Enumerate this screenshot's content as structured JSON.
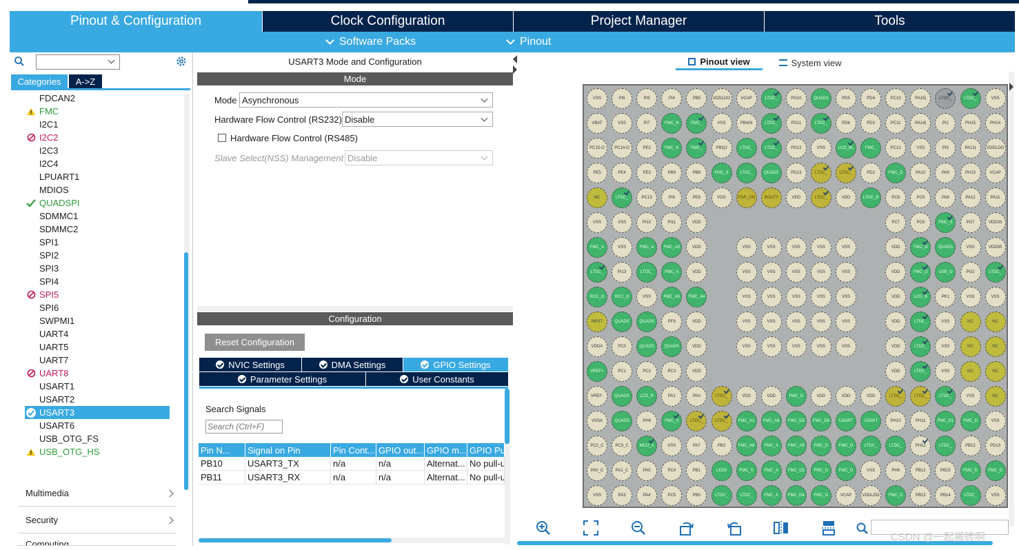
{
  "main_tabs": [
    "Pinout & Configuration",
    "Clock Configuration",
    "Project Manager",
    "Tools"
  ],
  "sub_nav": [
    "Software Packs",
    "Pinout"
  ],
  "left": {
    "search_value": "",
    "cat_tabs": [
      "Categories",
      "A->Z"
    ],
    "peripherals": [
      {
        "label": "FDCAN2",
        "state": "none"
      },
      {
        "label": "FMC",
        "state": "warn"
      },
      {
        "label": "I2C1",
        "state": "none"
      },
      {
        "label": "I2C2",
        "state": "blocked"
      },
      {
        "label": "I2C3",
        "state": "none"
      },
      {
        "label": "I2C4",
        "state": "none"
      },
      {
        "label": "LPUART1",
        "state": "none"
      },
      {
        "label": "MDIOS",
        "state": "none"
      },
      {
        "label": "QUADSPI",
        "state": "ok"
      },
      {
        "label": "SDMMC1",
        "state": "none"
      },
      {
        "label": "SDMMC2",
        "state": "none"
      },
      {
        "label": "SPI1",
        "state": "none"
      },
      {
        "label": "SPI2",
        "state": "none"
      },
      {
        "label": "SPI3",
        "state": "none"
      },
      {
        "label": "SPI4",
        "state": "none"
      },
      {
        "label": "SPI5",
        "state": "blocked"
      },
      {
        "label": "SPI6",
        "state": "none"
      },
      {
        "label": "SWPMI1",
        "state": "none"
      },
      {
        "label": "UART4",
        "state": "none"
      },
      {
        "label": "UART5",
        "state": "none"
      },
      {
        "label": "UART7",
        "state": "none"
      },
      {
        "label": "UART8",
        "state": "blocked"
      },
      {
        "label": "USART1",
        "state": "none"
      },
      {
        "label": "USART2",
        "state": "none"
      },
      {
        "label": "USART3",
        "state": "selected"
      },
      {
        "label": "USART6",
        "state": "none"
      },
      {
        "label": "USB_OTG_FS",
        "state": "none"
      },
      {
        "label": "USB_OTG_HS",
        "state": "warn"
      }
    ],
    "groups": [
      "Multimedia",
      "Security",
      "Computing"
    ]
  },
  "mid": {
    "title": "USART3 Mode and Configuration",
    "mode_header": "Mode",
    "mode_label": "Mode",
    "mode_value": "Asynchronous",
    "hfc_label": "Hardware Flow Control (RS232)",
    "hfc_value": "Disable",
    "rs485_label": "Hardware Flow Control (RS485)",
    "nss_label": "Slave Select(NSS) Management",
    "nss_value": "Disable",
    "config_header": "Configuration",
    "reset_button": "Reset Configuration",
    "settings_tabs": [
      "NVIC Settings",
      "DMA Settings",
      "GPIO Settings",
      "Parameter Settings",
      "User Constants"
    ],
    "search_label": "Search Signals",
    "search_placeholder": "Search (Ctrl+F)",
    "table": {
      "headers": [
        "Pin N...",
        "Signal on Pin",
        "Pin Cont...",
        "GPIO out...",
        "GPIO m...",
        "GPIO Pu"
      ],
      "rows": [
        [
          "PB10",
          "USART3_TX",
          "n/a",
          "n/a",
          "Alternat...",
          "No pull-u"
        ],
        [
          "PB11",
          "USART3_RX",
          "n/a",
          "n/a",
          "Alternat...",
          "No pull-u"
        ]
      ]
    }
  },
  "right": {
    "views": [
      "Pinout view",
      "System view"
    ],
    "pin_rows": [
      [
        [
          "VSS",
          "bg"
        ],
        [
          "PI6",
          "bg"
        ],
        [
          "PI5",
          "bg"
        ],
        [
          "PI4",
          "bg"
        ],
        [
          "PB5",
          "bg"
        ],
        [
          "VDDLDO",
          "bg"
        ],
        [
          "VCAP",
          "bg"
        ],
        [
          "LTDC_",
          "gr"
        ],
        [
          "PG10",
          "bg"
        ],
        [
          "QUADS",
          "gr"
        ],
        [
          "PD5",
          "bg"
        ],
        [
          "PD4",
          "bg"
        ],
        [
          "PC10",
          "bg"
        ],
        [
          "PA15(",
          "bg"
        ],
        [
          "LTDC_",
          "gy"
        ],
        [
          "LTDC_",
          "gr"
        ],
        [
          "VSS",
          "bg"
        ]
      ],
      [
        [
          "VBAT",
          "bg"
        ],
        [
          "VSS",
          "bg"
        ],
        [
          "PI7",
          "bg"
        ],
        [
          "FMC_N",
          "gr"
        ],
        [
          "FMC_",
          "gr"
        ],
        [
          "VSS",
          "bg"
        ],
        [
          "PB4(N",
          "bg"
        ],
        [
          "LTDC_",
          "gr"
        ],
        [
          "PG11",
          "bg"
        ],
        [
          "LTDC_",
          "gr"
        ],
        [
          "PD6",
          "bg"
        ],
        [
          "PD3",
          "bg"
        ],
        [
          "PC11",
          "bg"
        ],
        [
          "PA14(",
          "bg"
        ],
        [
          "PI2",
          "bg"
        ],
        [
          "PH15",
          "bg"
        ],
        [
          "PH14",
          "bg"
        ]
      ],
      [
        [
          "PC15-O",
          "bg"
        ],
        [
          "PC14-O",
          "bg"
        ],
        [
          "PE2",
          "bg"
        ],
        [
          "FMC_N",
          "gr"
        ],
        [
          "FMC_",
          "gr"
        ],
        [
          "PB3(J",
          "bg"
        ],
        [
          "LTDC_",
          "gr"
        ],
        [
          "LTDC_",
          "gr"
        ],
        [
          "PG12",
          "bg"
        ],
        [
          "VSS",
          "bg"
        ],
        [
          "LCD_BL",
          "gr"
        ],
        [
          "FMC_",
          "gr"
        ],
        [
          "PC12",
          "bg"
        ],
        [
          "VSS",
          "bg"
        ],
        [
          "PI3",
          "bg"
        ],
        [
          "PA13(",
          "bg"
        ],
        [
          "VDDLDO",
          "bg"
        ]
      ],
      [
        [
          "PE5",
          "bg"
        ],
        [
          "PE4",
          "bg"
        ],
        [
          "PE3",
          "bg"
        ],
        [
          "PB9",
          "bg"
        ],
        [
          "PB8",
          "bg"
        ],
        [
          "FMC_S",
          "gr"
        ],
        [
          "LTDC_",
          "gr"
        ],
        [
          "QUADS",
          "gr"
        ],
        [
          "PG13",
          "bg"
        ],
        [
          "LTDC_",
          "ye"
        ],
        [
          "LTDC_",
          "ye"
        ],
        [
          "PD2",
          "bg"
        ],
        [
          "FMC_D",
          "gr"
        ],
        [
          "PA10",
          "bg"
        ],
        [
          "PA9",
          "bg"
        ],
        [
          "PH13",
          "bg"
        ],
        [
          "VCAP",
          "bg"
        ]
      ],
      [
        [
          "NC",
          "nc"
        ],
        [
          "LTDC_",
          "gr"
        ],
        [
          "PC13",
          "bg"
        ],
        [
          "PI8",
          "bg"
        ],
        [
          "PE6",
          "bg"
        ],
        [
          "VDD",
          "bg"
        ],
        [
          "PDR_ON",
          "ye"
        ],
        [
          "BOOT0",
          "ye"
        ],
        [
          "VDD",
          "bg"
        ],
        [
          "LTDC_",
          "ye"
        ],
        [
          "VDD",
          "bg"
        ],
        [
          "LTDC_B",
          "gr"
        ],
        [
          "PC8",
          "bg"
        ],
        [
          "PC9",
          "bg"
        ],
        [
          "PA8",
          "bg"
        ],
        [
          "PA12",
          "bg"
        ],
        [
          "PA11",
          "bg"
        ]
      ],
      [
        [
          "VSS",
          "bg"
        ],
        [
          "VSS",
          "bg"
        ],
        [
          "PI10",
          "bg"
        ],
        [
          "PI11",
          "bg"
        ],
        [
          "VDD",
          "bg"
        ],
        [],
        [],
        [],
        [],
        [],
        [],
        [],
        [
          "PC7",
          "bg"
        ],
        [
          "PC6",
          "bg"
        ],
        [
          "FMC_S",
          "gr"
        ],
        [
          "PG7",
          "bg"
        ],
        [
          "VDD33",
          "bg"
        ]
      ],
      [
        [
          "FMC_A",
          "gr"
        ],
        [
          "VSS",
          "bg"
        ],
        [
          "FMC_A",
          "gr"
        ],
        [
          "FMC_A0",
          "gr"
        ],
        [
          "VDD",
          "bg"
        ],
        [],
        [
          "VSS",
          "bg"
        ],
        [
          "VSS",
          "bg"
        ],
        [
          "VSS",
          "bg"
        ],
        [
          "VSS",
          "bg"
        ],
        [
          "VSS",
          "bg"
        ],
        [],
        [
          "VDD",
          "bg"
        ],
        [
          "FMC_D",
          "gr"
        ],
        [
          "QUADS",
          "gr"
        ],
        [
          "VSS",
          "bg"
        ],
        [
          "VDD50",
          "bg"
        ]
      ],
      [
        [
          "LTDC_",
          "gr"
        ],
        [
          "PI13",
          "bg"
        ],
        [
          "LTDC_",
          "gr"
        ],
        [
          "FMC_A",
          "gr"
        ],
        [
          "VDD",
          "bg"
        ],
        [],
        [
          "VSS",
          "bg"
        ],
        [
          "VSS",
          "bg"
        ],
        [
          "VSS",
          "bg"
        ],
        [
          "VSS",
          "bg"
        ],
        [
          "VSS",
          "bg"
        ],
        [],
        [
          "VDD",
          "bg"
        ],
        [
          "FMC_D",
          "gr"
        ],
        [
          "USB_O",
          "gr"
        ],
        [
          "PG2",
          "bg"
        ],
        [
          "LTDC_",
          "gr"
        ]
      ],
      [
        [
          "RCC_O",
          "gr"
        ],
        [
          "RCC_O",
          "gr"
        ],
        [
          "VSS",
          "bg"
        ],
        [
          "FMC_A5",
          "gr"
        ],
        [
          "FMC_A4",
          "gr"
        ],
        [],
        [
          "VSS",
          "bg"
        ],
        [
          "VSS",
          "bg"
        ],
        [
          "VSS",
          "bg"
        ],
        [
          "VSS",
          "bg"
        ],
        [
          "VSS",
          "bg"
        ],
        [],
        [
          "VDD",
          "bg"
        ],
        [
          "LCD_B",
          "gr"
        ],
        [
          "PK1",
          "bg"
        ],
        [
          "VSS",
          "bg"
        ],
        [
          "VSS",
          "bg"
        ]
      ],
      [
        [
          "NRST",
          "nc"
        ],
        [
          "QUADS",
          "gr"
        ],
        [
          "QUADS",
          "gr"
        ],
        [
          "PF8",
          "bg"
        ],
        [
          "VDD",
          "bg"
        ],
        [],
        [
          "VSS",
          "bg"
        ],
        [
          "VSS",
          "bg"
        ],
        [
          "VSS",
          "bg"
        ],
        [
          "VSS",
          "bg"
        ],
        [
          "VSS",
          "bg"
        ],
        [],
        [
          "VDD",
          "bg"
        ],
        [
          "LTDC_",
          "gr"
        ],
        [
          "VSS",
          "bg"
        ],
        [
          "NC",
          "nc"
        ],
        [
          "NC",
          "nc"
        ]
      ],
      [
        [
          "VDDA",
          "bg"
        ],
        [
          "PC0",
          "bg"
        ],
        [
          "QUADS",
          "gr"
        ],
        [
          "QUADS",
          "gr"
        ],
        [
          "VDD",
          "bg"
        ],
        [],
        [
          "VSS",
          "bg"
        ],
        [
          "VSS",
          "bg"
        ],
        [
          "VSS",
          "bg"
        ],
        [
          "VSS",
          "bg"
        ],
        [
          "VSS",
          "bg"
        ],
        [],
        [
          "VDD",
          "bg"
        ],
        [
          "LTDC_",
          "gr"
        ],
        [
          "VSS",
          "bg"
        ],
        [
          "NC",
          "nc"
        ],
        [
          "NC",
          "nc"
        ]
      ],
      [
        [
          "VREF+",
          "gr"
        ],
        [
          "PC1",
          "bg"
        ],
        [
          "PC2",
          "bg"
        ],
        [
          "PC3",
          "bg"
        ],
        [
          "VDD",
          "bg"
        ],
        [],
        [],
        [],
        [],
        [],
        [],
        [],
        [
          "VDD",
          "bg"
        ],
        [
          "LTDC_",
          "gr"
        ],
        [
          "VSS",
          "bg"
        ],
        [
          "NC",
          "nc"
        ],
        [
          "NC",
          "nc"
        ]
      ],
      [
        [
          "VREF-",
          "bg"
        ],
        [
          "QUADS",
          "gr"
        ],
        [
          "LCD_R",
          "gr"
        ],
        [
          "PA1",
          "bg"
        ],
        [
          "PA0",
          "bg"
        ],
        [
          "LTDC_",
          "ye"
        ],
        [
          "VDD",
          "bg"
        ],
        [
          "VDD",
          "bg"
        ],
        [
          "FMC_D",
          "gr"
        ],
        [
          "VDD",
          "bg"
        ],
        [
          "VDD",
          "bg"
        ],
        [
          "VDD",
          "bg"
        ],
        [
          "LTDC_",
          "ye"
        ],
        [
          "LTDC_",
          "ye"
        ],
        [
          "LTDC_",
          "gr"
        ],
        [
          "VSS",
          "bg"
        ],
        [
          "NC",
          "nc"
        ]
      ],
      [
        [
          "VSSA",
          "bg"
        ],
        [
          "QUADS",
          "gr"
        ],
        [
          "PH4",
          "bg"
        ],
        [
          "FMC_S",
          "gr"
        ],
        [
          "LTDC_",
          "ye"
        ],
        [
          "LTDC_",
          "ye"
        ],
        [
          "FMC_A1",
          "gr"
        ],
        [
          "FMC_A6",
          "gr"
        ],
        [
          "FMC_D8",
          "gr"
        ],
        [
          "FMC_D8",
          "gr"
        ],
        [
          "USART",
          "gr"
        ],
        [
          "USART",
          "gr"
        ],
        [
          "PH10",
          "bg"
        ],
        [
          "PH11",
          "bg"
        ],
        [
          "FMC_D1",
          "gr"
        ],
        [
          "FMC_D",
          "gr"
        ],
        [
          "VSS",
          "bg"
        ]
      ],
      [
        [
          "PC2_C",
          "bg"
        ],
        [
          "PC3_C",
          "bg"
        ],
        [
          "MCU_A",
          "gr"
        ],
        [
          "VSS",
          "bg"
        ],
        [
          "PA7",
          "bg"
        ],
        [
          "PB2",
          "bg"
        ],
        [
          "FMC_A8",
          "gr"
        ],
        [
          "FMC_A",
          "gr"
        ],
        [
          "FMC_A9",
          "gr"
        ],
        [
          "FMC_D",
          "gr"
        ],
        [
          "FMC_D",
          "gr"
        ],
        [
          "LTDC_",
          "gr"
        ],
        [
          "LTDC_",
          "gr"
        ],
        [
          "PH12",
          "bg"
        ],
        [
          "LTDC_",
          "gr"
        ],
        [
          "PB12",
          "bg"
        ],
        [
          "PD13",
          "bg"
        ]
      ],
      [
        [
          "PA0_C",
          "bg"
        ],
        [
          "PA1_C",
          "bg"
        ],
        [
          "PA5",
          "bg"
        ],
        [
          "PC4",
          "bg"
        ],
        [
          "PB1",
          "bg"
        ],
        [
          "LED0",
          "gr"
        ],
        [
          "FMC_S",
          "gr"
        ],
        [
          "FMC_A",
          "gr"
        ],
        [
          "FMC_D5",
          "gr"
        ],
        [
          "FMC_D",
          "gr"
        ],
        [
          "FMC_D",
          "gr"
        ],
        [
          "VSS",
          "bg"
        ],
        [
          "PH8",
          "bg"
        ],
        [
          "PB12",
          "bg"
        ],
        [
          "PB15",
          "bg"
        ],
        [
          "FMC_D",
          "gr"
        ],
        [
          "FMC_D",
          "gr"
        ]
      ],
      [
        [
          "VSS",
          "bg"
        ],
        [
          "PA3",
          "bg"
        ],
        [
          "PA4",
          "bg"
        ],
        [
          "PC5",
          "bg"
        ],
        [
          "PB0",
          "bg"
        ],
        [
          "LTDC_",
          "gr"
        ],
        [
          "LTDC_",
          "gr"
        ],
        [
          "FMC_A",
          "gr"
        ],
        [
          "FMC_D4",
          "gr"
        ],
        [
          "FMC_D",
          "gr"
        ],
        [
          "VCAP",
          "bg"
        ],
        [
          "VDDLDO",
          "bg"
        ],
        [
          "FMC_D",
          "gr"
        ],
        [
          "PB13",
          "bg"
        ],
        [
          "PB14",
          "bg"
        ],
        [
          "LTDC_",
          "gr"
        ],
        [
          "VSS",
          "bg"
        ]
      ]
    ],
    "checked_pins": [
      [
        0,
        7
      ],
      [
        0,
        14
      ],
      [
        0,
        15
      ],
      [
        1,
        4
      ],
      [
        1,
        7
      ],
      [
        1,
        9
      ],
      [
        2,
        4
      ],
      [
        2,
        7
      ],
      [
        2,
        10
      ],
      [
        3,
        9
      ],
      [
        3,
        10
      ],
      [
        4,
        1
      ],
      [
        4,
        9
      ],
      [
        5,
        14
      ],
      [
        6,
        13
      ],
      [
        7,
        0
      ],
      [
        7,
        13
      ],
      [
        7,
        16
      ],
      [
        8,
        13
      ],
      [
        9,
        13
      ],
      [
        10,
        13
      ],
      [
        11,
        13
      ],
      [
        12,
        5
      ],
      [
        12,
        12
      ],
      [
        12,
        13
      ],
      [
        12,
        14
      ],
      [
        13,
        3
      ],
      [
        13,
        4
      ],
      [
        13,
        5
      ],
      [
        14,
        2
      ],
      [
        14,
        13
      ]
    ]
  },
  "watermark": "CSDN @一起搬砖啊"
}
